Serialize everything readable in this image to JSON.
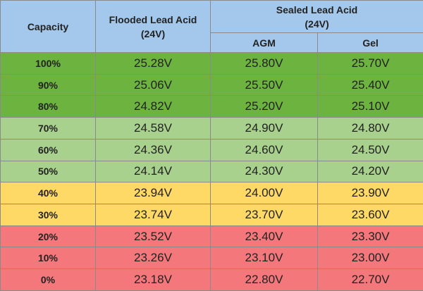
{
  "header": {
    "capacity": "Capacity",
    "flooded": "Flooded Lead Acid\n(24V)",
    "sealed": "Sealed Lead Acid\n(24V)",
    "agm": "AGM",
    "gel": "Gel",
    "color": "#a4c8ec"
  },
  "table": {
    "rows": [
      {
        "cells": [
          "100%",
          "25.28V",
          "25.80V",
          "25.70V"
        ],
        "color": "#6cb33f"
      },
      {
        "cells": [
          "90%",
          "25.06V",
          "25.50V",
          "25.40V"
        ],
        "color": "#6cb33f"
      },
      {
        "cells": [
          "80%",
          "24.82V",
          "25.20V",
          "25.10V"
        ],
        "color": "#6cb33f"
      },
      {
        "cells": [
          "70%",
          "24.58V",
          "24.90V",
          "24.80V"
        ],
        "color": "#a9d18e"
      },
      {
        "cells": [
          "60%",
          "24.36V",
          "24.60V",
          "24.50V"
        ],
        "color": "#a9d18e"
      },
      {
        "cells": [
          "50%",
          "24.14V",
          "24.30V",
          "24.20V"
        ],
        "color": "#a9d18e"
      },
      {
        "cells": [
          "40%",
          "23.94V",
          "24.00V",
          "23.90V"
        ],
        "color": "#ffd966"
      },
      {
        "cells": [
          "30%",
          "23.74V",
          "23.70V",
          "23.60V"
        ],
        "color": "#ffd966"
      },
      {
        "cells": [
          "20%",
          "23.52V",
          "23.40V",
          "23.30V"
        ],
        "color": "#f4787b"
      },
      {
        "cells": [
          "10%",
          "23.26V",
          "23.10V",
          "23.00V"
        ],
        "color": "#f4787b"
      },
      {
        "cells": [
          "0%",
          "23.18V",
          "22.80V",
          "22.70V"
        ],
        "color": "#f4787b"
      }
    ]
  }
}
